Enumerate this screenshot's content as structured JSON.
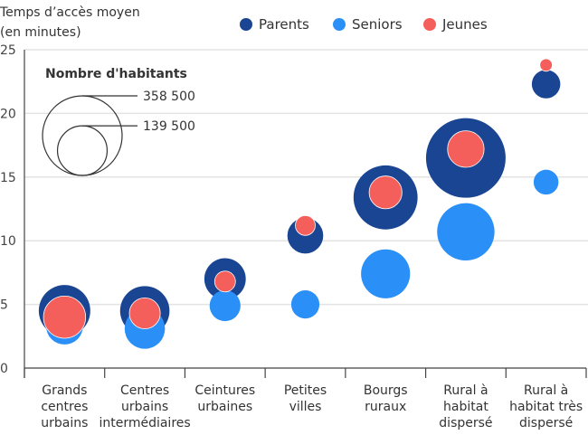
{
  "chart_data": {
    "type": "scatter",
    "subtype": "bubble",
    "ylabel_lines": [
      "Temps d’accès moyen",
      "(en minutes)"
    ],
    "ylim": [
      0,
      25
    ],
    "yticks": [
      "0",
      "5",
      "10",
      "15",
      "20",
      "25"
    ],
    "grid": true,
    "legend_position": "top",
    "categories": [
      [
        "Grands",
        "centres",
        "urbains"
      ],
      [
        "Centres",
        "urbains",
        "intermédiaires"
      ],
      [
        "Ceintures",
        "urbaines"
      ],
      [
        "Petites",
        "villes"
      ],
      [
        "Bourgs",
        "ruraux"
      ],
      [
        "Rural à",
        "habitat",
        "dispersé"
      ],
      [
        "Rural à",
        "habitat très",
        "dispersé"
      ]
    ],
    "series": [
      {
        "name": "Parents",
        "color": "#1a4593",
        "values": [
          4.5,
          4.5,
          7.0,
          10.4,
          13.4,
          16.5,
          22.3
        ],
        "sizes": [
          150000,
          138000,
          97000,
          72500,
          232000,
          358500,
          46000
        ]
      },
      {
        "name": "Seniors",
        "color": "#2a8ff7",
        "values": [
          3.3,
          3.1,
          4.9,
          5.0,
          7.4,
          10.7,
          14.6
        ],
        "sizes": [
          77000,
          92000,
          54000,
          45000,
          136000,
          186000,
          35000
        ]
      },
      {
        "name": "Jeunes",
        "color": "#f45f5c",
        "values": [
          4.0,
          4.3,
          6.8,
          11.2,
          13.8,
          17.2,
          23.8
        ],
        "sizes": [
          100500,
          54000,
          24500,
          22400,
          61000,
          75500,
          8800
        ]
      }
    ],
    "size_legend": {
      "title": "Nombre d'habitants",
      "values": [
        358500,
        139500
      ],
      "labels": [
        "358 500",
        "139 500"
      ]
    }
  }
}
